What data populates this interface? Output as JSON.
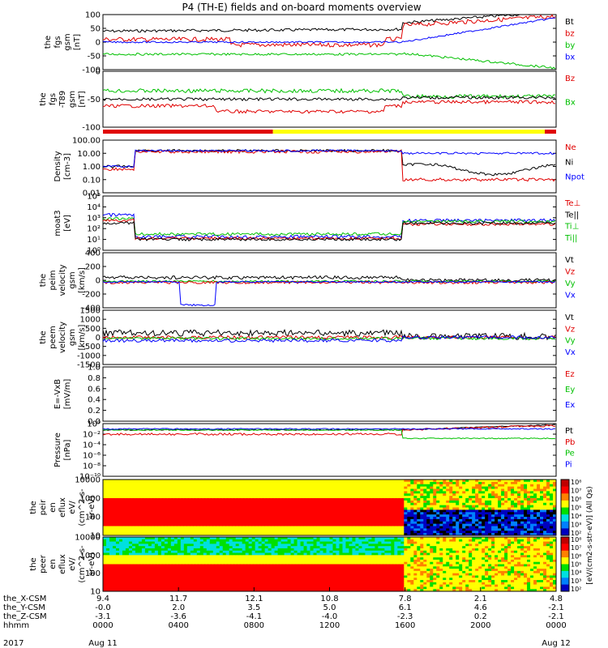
{
  "title": "P4 (TH-E) fields and on-board moments overview",
  "chart_data": {
    "type": "line",
    "title": "P4 (TH-E) fields and on-board moments overview",
    "panels": [
      {
        "id": "fgs",
        "ylabel_lines": [
          "the",
          "fgs",
          "gsm",
          "[nT]"
        ],
        "ylim": [
          -100,
          100
        ],
        "yticks": [
          "100",
          "50",
          "0",
          "-50",
          "-100"
        ],
        "series": [
          {
            "name": "Bt",
            "color": "#000000"
          },
          {
            "name": "bz",
            "color": "#e00000"
          },
          {
            "name": "by",
            "color": "#00c000"
          },
          {
            "name": "bx",
            "color": "#0000ff"
          }
        ]
      },
      {
        "id": "fgs-dgsm",
        "ylabel_lines": [
          "the",
          "fgs",
          "-T89",
          "gsm",
          "[nT]"
        ],
        "ylim": [
          -125,
          25
        ],
        "yticks": [
          "0",
          "-50",
          "-100"
        ],
        "series": [
          {
            "name": "Bz",
            "color": "#e00000"
          },
          {
            "name": "Bx",
            "color": "#00c000"
          }
        ]
      },
      {
        "id": "density",
        "ylabel_lines": [
          "Density",
          "[cm-3]"
        ],
        "log": true,
        "yticks": [
          "100.00",
          "10.00",
          "1.00",
          "0.10",
          "0.01"
        ],
        "series": [
          {
            "name": "Ne",
            "color": "#e00000"
          },
          {
            "name": "Ni",
            "color": "#000000"
          },
          {
            "name": "Npot",
            "color": "#0000ff"
          }
        ]
      },
      {
        "id": "temp",
        "ylabel_lines": [
          "moat3",
          "[eV]"
        ],
        "log": true,
        "yticks": [
          "10⁵",
          "10⁴",
          "10³",
          "10²",
          "10¹",
          "10⁰"
        ],
        "series": [
          {
            "name": "Te⊥",
            "color": "#e00000"
          },
          {
            "name": "Te||",
            "color": "#000000"
          },
          {
            "name": "Ti⊥",
            "color": "#00c000"
          },
          {
            "name": "Ti||",
            "color": "#00c000"
          }
        ]
      },
      {
        "id": "peim-vel",
        "ylabel_lines": [
          "the",
          "peim",
          "velocity",
          "gsm",
          "[km/s]"
        ],
        "ylim": [
          -400,
          400
        ],
        "yticks": [
          "400",
          "200",
          "0",
          "-200",
          "-400"
        ],
        "series": [
          {
            "name": "Vt",
            "color": "#000000"
          },
          {
            "name": "Vz",
            "color": "#e00000"
          },
          {
            "name": "Vy",
            "color": "#00c000"
          },
          {
            "name": "Vx",
            "color": "#0000ff"
          }
        ]
      },
      {
        "id": "peem-vel",
        "ylabel_lines": [
          "the",
          "peem",
          "velocity",
          "gsm",
          "[km/s]"
        ],
        "ylim": [
          -1500,
          1500
        ],
        "yticks": [
          "1500",
          "1000",
          "500",
          "0",
          "-500",
          "-1000",
          "-1500"
        ],
        "series": [
          {
            "name": "Vt",
            "color": "#000000"
          },
          {
            "name": "Vz",
            "color": "#e00000"
          },
          {
            "name": "Vy",
            "color": "#00c000"
          },
          {
            "name": "Vx",
            "color": "#0000ff"
          }
        ]
      },
      {
        "id": "efield",
        "ylabel_lines": [
          "E=-VxB",
          "[mV/m]"
        ],
        "ylim": [
          0,
          1
        ],
        "yticks": [
          "1.0",
          "0.8",
          "0.6",
          "0.4",
          "0.2",
          "0.0"
        ],
        "series": [
          {
            "name": "Ez",
            "color": "#e00000"
          },
          {
            "name": "Ey",
            "color": "#00c000"
          },
          {
            "name": "Ex",
            "color": "#0000ff"
          }
        ]
      },
      {
        "id": "pressure",
        "ylabel_lines": [
          "Pressure",
          "[nPa]"
        ],
        "log": true,
        "yticks": [
          "10⁰",
          "10⁻²",
          "10⁻⁴",
          "10⁻⁶",
          "10⁻⁸",
          "10⁻¹⁰"
        ],
        "series": [
          {
            "name": "Pt",
            "color": "#000000"
          },
          {
            "name": "Pb",
            "color": "#e00000"
          },
          {
            "name": "Pe",
            "color": "#00c000"
          },
          {
            "name": "Pi",
            "color": "#0000ff"
          }
        ]
      },
      {
        "id": "peir-spec",
        "ylabel_lines": [
          "the",
          "peir",
          "en",
          "eflux",
          "eV/",
          "(cm^2-s-",
          "sr-eV)"
        ],
        "yticks": [
          "10000",
          "1000",
          "100",
          "10"
        ]
      },
      {
        "id": "peer-spec",
        "ylabel_lines": [
          "the",
          "peer",
          "en",
          "eflux",
          "eV/",
          "(cm^2-s-",
          "sr-eV)"
        ],
        "yticks": [
          "10000",
          "1000",
          "100",
          "10"
        ]
      }
    ],
    "colorbar": {
      "label": "[eV/(cm2-s-str-eV)] (All Qs)",
      "ticks": [
        "10⁸",
        "10⁷",
        "10⁶",
        "10⁵",
        "10⁴",
        "10³",
        "10²"
      ]
    },
    "xaxis": {
      "rows": [
        {
          "label": "the_X-CSM",
          "values": [
            "9.4",
            "11.7",
            "12.1",
            "10.8",
            "7.8",
            "2.1",
            "4.8"
          ]
        },
        {
          "label": "the_Y-CSM",
          "values": [
            "-0.0",
            "2.0",
            "3.5",
            "5.0",
            "6.1",
            "4.6",
            "-2.1"
          ]
        },
        {
          "label": "the_Z-CSM",
          "values": [
            "-3.1",
            "-3.6",
            "-4.1",
            "-4.0",
            "-2.3",
            "0.2",
            "-2.1"
          ]
        },
        {
          "label": "hhmm",
          "values": [
            "0000",
            "0400",
            "0800",
            "1200",
            "1600",
            "2000",
            "0000"
          ]
        }
      ],
      "year": "2017",
      "start_date": "Aug 11",
      "end_date": "Aug 12"
    },
    "mode_bar": {
      "segments": [
        {
          "from": 0,
          "to": 0.375,
          "color": "#e00000"
        },
        {
          "from": 0.375,
          "to": 0.975,
          "color": "#ffff00"
        },
        {
          "from": 0.975,
          "to": 1,
          "color": "#e00000"
        }
      ]
    }
  }
}
